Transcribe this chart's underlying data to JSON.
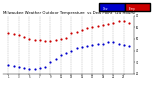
{
  "title": "Milwaukee Weather Outdoor Temperature  vs Dew Point  (24 Hours)",
  "title_fontsize": 2.8,
  "background_color": "#ffffff",
  "plot_bg_color": "#ffffff",
  "grid_color": "#aaaaaa",
  "temp": [
    55,
    54,
    53,
    52,
    50,
    49,
    49,
    48,
    48,
    49,
    50,
    51,
    55,
    56,
    58,
    59,
    60,
    61,
    62,
    63,
    64,
    65,
    65,
    64
  ],
  "temp_x": [
    1,
    2,
    3,
    4,
    5,
    6,
    7,
    8,
    9,
    10,
    11,
    12,
    13,
    14,
    15,
    16,
    17,
    18,
    19,
    20,
    21,
    22,
    23,
    24
  ],
  "dew": [
    28,
    27,
    26,
    25,
    24,
    24,
    25,
    26,
    30,
    33,
    36,
    38,
    40,
    42,
    43,
    44,
    45,
    46,
    46,
    47,
    47,
    46,
    45,
    44
  ],
  "dew_x": [
    1,
    2,
    3,
    4,
    5,
    6,
    7,
    8,
    9,
    10,
    11,
    12,
    13,
    14,
    15,
    16,
    17,
    18,
    19,
    20,
    21,
    22,
    23,
    24
  ],
  "temp_color": "#cc0000",
  "dew_color": "#0000cc",
  "ylim": [
    20,
    70
  ],
  "xlim": [
    0,
    25
  ],
  "yticks": [
    20,
    30,
    40,
    50,
    60,
    70
  ],
  "xticks": [
    1,
    3,
    5,
    7,
    9,
    11,
    13,
    15,
    17,
    19,
    21,
    23
  ],
  "xtick_labels": [
    "1",
    "3",
    "5",
    "7",
    "9",
    "11",
    "13",
    "15",
    "17",
    "19",
    "21",
    "23"
  ],
  "ytick_labels": [
    "20",
    "30",
    "40",
    "50",
    "60",
    "70"
  ],
  "legend_temp": "Temp",
  "legend_dew": "Dew",
  "vgrid_positions": [
    1,
    3,
    5,
    7,
    9,
    11,
    13,
    15,
    17,
    19,
    21,
    23
  ],
  "dot_size": 2.5
}
